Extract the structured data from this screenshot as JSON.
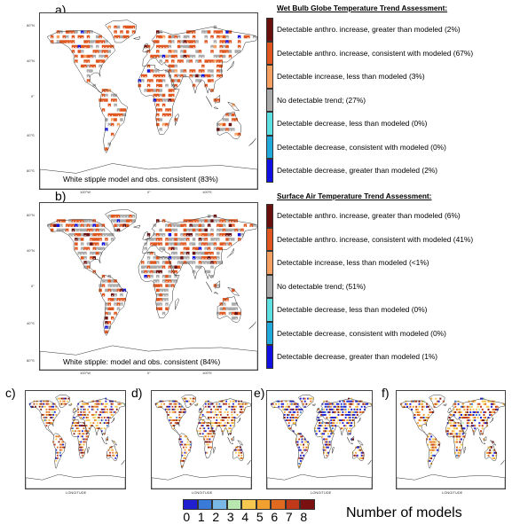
{
  "panel_a": {
    "label": "a)",
    "legend_title": "Wet Bulb Globe Temperature Trend Assessment:",
    "legend": [
      {
        "text": "Detectable anthro. increase, greater than modeled (2%)",
        "color": "#6b0f0f"
      },
      {
        "text": "Detectable anthro.  increase, consistent with modeled (67%)",
        "color": "#e0561f"
      },
      {
        "text": "Detectable increase, less than modeled (3%)",
        "color": "#f5a060"
      },
      {
        "text": "No detectable trend; (27%)",
        "color": "#a9a9a9"
      },
      {
        "text": "Detectable  decrease, less than modeled (0%)",
        "color": "#5fe0e0"
      },
      {
        "text": "Detectable  decrease, consistent with modeled (0%)",
        "color": "#22aadd"
      },
      {
        "text": "Detectable  decrease, greater than modeled (2%)",
        "color": "#1010e0"
      }
    ],
    "stipple_note": "White stipple  model and obs. consistent (83%)",
    "lat_ticks": [
      "80°N",
      "40°N",
      "0°",
      "40°S",
      "80°S"
    ],
    "lon_ticks": [
      "100°W",
      "0°",
      "100°E"
    ],
    "mix": {
      "#a9a9a9": 0.28,
      "#e0561f": 0.62,
      "#f5a060": 0.04,
      "#6b0f0f": 0.03,
      "#1010e0": 0.03
    }
  },
  "panel_b": {
    "label": "b)",
    "legend_title": "Surface Air Temperature Trend Assessment:",
    "legend": [
      {
        "text": "Detectable anthro. increase, greater than modeled (6%)",
        "color": "#6b0f0f"
      },
      {
        "text": "Detectable anthro.  increase, consistent with modeled  (41%)",
        "color": "#e0561f"
      },
      {
        "text": "Detectable  increase, less than modeled (<1%)",
        "color": "#f5a060"
      },
      {
        "text": "No detectable trend; (51%)",
        "color": "#a9a9a9"
      },
      {
        "text": "Detectable  decrease, less than modeled  (0%)",
        "color": "#5fe0e0"
      },
      {
        "text": "Detectable  decrease, consistent with modeled (0%)",
        "color": "#22aadd"
      },
      {
        "text": "Detectable  decrease, greater than modeled (1%)",
        "color": "#1010e0"
      }
    ],
    "stipple_note": "White stipple:  model and obs. consistent (84%)",
    "lat_ticks": [
      "80°N",
      "40°N",
      "0°",
      "40°S",
      "80°S"
    ],
    "lon_ticks": [
      "100°W",
      "0°",
      "100°E"
    ],
    "mix": {
      "#a9a9a9": 0.5,
      "#e0561f": 0.4,
      "#6b0f0f": 0.07,
      "#f5a060": 0.01,
      "#1010e0": 0.02
    }
  },
  "small_panels": [
    {
      "label": "c)",
      "lon_title": "LONGITUDE"
    },
    {
      "label": "d)",
      "lon_title": "LONGITUDE"
    },
    {
      "label": "e)",
      "lon_title": "LONGITUDE"
    },
    {
      "label": "f)",
      "lon_title": "LONGITUDE"
    }
  ],
  "colorbar": {
    "colors": [
      "#2020d0",
      "#3a7ad8",
      "#7ab8e8",
      "#b8e8b0",
      "#f6c850",
      "#f2a030",
      "#e06a20",
      "#c03a1a",
      "#7a1010"
    ],
    "numbers": [
      "0",
      "1",
      "2",
      "3",
      "4",
      "5",
      "6",
      "7",
      "8"
    ],
    "title": "Number of models"
  }
}
